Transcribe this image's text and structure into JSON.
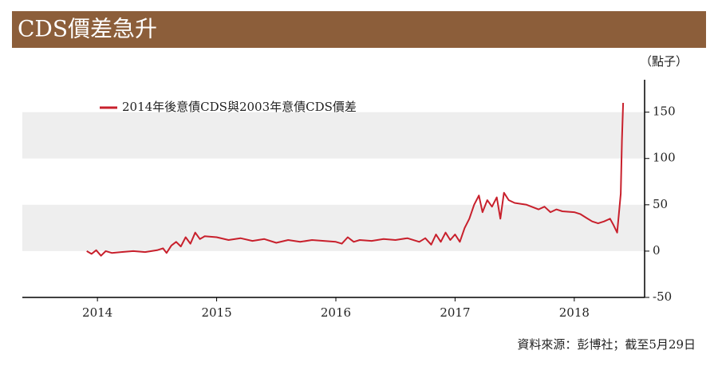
{
  "chart_data": {
    "type": "line",
    "title": "CDS價差急升",
    "unit_label": "（點子）",
    "source": "資料來源：彭博社；截至5月29日",
    "x": [
      2013.91,
      2013.95,
      2013.99,
      2014.03,
      2014.07,
      2014.12,
      2014.2,
      2014.3,
      2014.4,
      2014.5,
      2014.55,
      2014.58,
      2014.62,
      2014.66,
      2014.7,
      2014.74,
      2014.78,
      2014.82,
      2014.86,
      2014.9,
      2015.0,
      2015.1,
      2015.2,
      2015.3,
      2015.4,
      2015.5,
      2015.6,
      2015.7,
      2015.8,
      2015.9,
      2016.0,
      2016.05,
      2016.1,
      2016.15,
      2016.2,
      2016.3,
      2016.4,
      2016.5,
      2016.6,
      2016.7,
      2016.75,
      2016.8,
      2016.84,
      2016.88,
      2016.92,
      2016.96,
      2017.0,
      2017.04,
      2017.08,
      2017.12,
      2017.16,
      2017.2,
      2017.23,
      2017.27,
      2017.31,
      2017.35,
      2017.38,
      2017.41,
      2017.45,
      2017.5,
      2017.6,
      2017.7,
      2017.75,
      2017.8,
      2017.85,
      2017.9,
      2018.0,
      2018.05,
      2018.1,
      2018.15,
      2018.2,
      2018.25,
      2018.3,
      2018.33,
      2018.36,
      2018.39,
      2018.4,
      2018.41
    ],
    "series": [
      {
        "name": "2014年後意債CDS與2003年意債CDS價差",
        "color": "#c8202c",
        "values": [
          0,
          -3,
          1,
          -5,
          0,
          -2,
          -1,
          0,
          -1,
          1,
          3,
          -2,
          6,
          10,
          5,
          15,
          8,
          20,
          13,
          16,
          15,
          12,
          14,
          11,
          13,
          9,
          12,
          10,
          12,
          11,
          10,
          8,
          15,
          10,
          12,
          11,
          13,
          12,
          14,
          10,
          14,
          7,
          18,
          10,
          20,
          12,
          18,
          10,
          25,
          35,
          50,
          60,
          42,
          55,
          48,
          58,
          35,
          63,
          55,
          52,
          50,
          45,
          48,
          42,
          45,
          43,
          42,
          40,
          36,
          32,
          30,
          32,
          35,
          28,
          20,
          62,
          120,
          160
        ]
      }
    ],
    "xlim": [
      2013.37,
      2018.59
    ],
    "xticks": [
      2014,
      2015,
      2016,
      2017,
      2018
    ],
    "ylim": [
      -50,
      185
    ],
    "yticks": [
      -50,
      0,
      50,
      100,
      150
    ],
    "band_shading": true,
    "band_color": "#eeeeee",
    "header_color": "#8c5e3a"
  }
}
